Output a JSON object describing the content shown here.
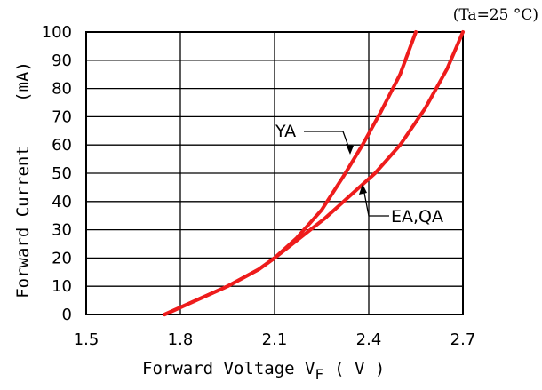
{
  "chart_data": {
    "type": "line",
    "condition": "(Ta=25 °C)",
    "xlabel": "Forward Voltage V",
    "xlabel_sub": "F",
    "xlabel_unit": "( V )",
    "ylabel": "Forward Current",
    "ylabel_unit": "(mA)",
    "xlim": [
      1.5,
      2.7
    ],
    "ylim": [
      0,
      100
    ],
    "x_ticks": [
      "1.5",
      "1.8",
      "2.1",
      "2.4",
      "2.7"
    ],
    "y_ticks": [
      "0",
      "10",
      "20",
      "30",
      "40",
      "50",
      "60",
      "70",
      "80",
      "90",
      "100"
    ],
    "grid": true,
    "series": [
      {
        "name": "YA",
        "color": "#ee1c1c",
        "x": [
          1.75,
          1.85,
          1.95,
          2.05,
          2.1,
          2.17,
          2.25,
          2.32,
          2.38,
          2.44,
          2.5,
          2.55
        ],
        "y": [
          0,
          5,
          10,
          16,
          20,
          27,
          37,
          49,
          60,
          72,
          85,
          100
        ]
      },
      {
        "name": "EA,QA",
        "color": "#ee1c1c",
        "x": [
          1.75,
          1.85,
          1.95,
          2.05,
          2.1,
          2.18,
          2.26,
          2.34,
          2.42,
          2.5,
          2.58,
          2.65,
          2.7
        ],
        "y": [
          0,
          5,
          10,
          16,
          20,
          27,
          34,
          42,
          50,
          60,
          73,
          87,
          100
        ]
      }
    ],
    "annotations": [
      {
        "text": "YA",
        "series": 0
      },
      {
        "text": "EA,QA",
        "series": 1
      }
    ]
  }
}
